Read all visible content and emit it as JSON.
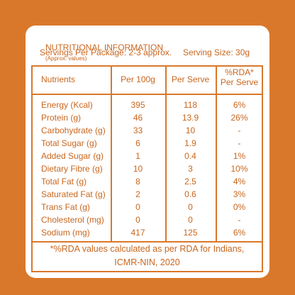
{
  "title": "NUTRITIONAL INFORMATION",
  "title_note": "(Approx. values)",
  "servings": "Servings Per Package: 2-3 approx.",
  "serving_size": "Serving Size: 30g",
  "table": {
    "header": [
      "Nutrients",
      "Per 100g",
      "Per Serve",
      "%RDA*\nPer Serve"
    ],
    "rows": [
      [
        "Energy (Kcal)",
        "395",
        "118",
        "6%"
      ],
      [
        "Protein (g)",
        "46",
        "13.9",
        "26%"
      ],
      [
        "Carbohydrate (g)",
        "33",
        "10",
        "-"
      ],
      [
        "Total Sugar (g)",
        "6",
        "1.9",
        "-"
      ],
      [
        "Added Sugar (g)",
        "1",
        "0.4",
        "1%"
      ],
      [
        "Dietary Fibre (g)",
        "10",
        "3",
        "10%"
      ],
      [
        "Total Fat (g)",
        "8",
        "2.5",
        "4%"
      ],
      [
        "Saturated Fat (g)",
        "2",
        "0.6",
        "3%"
      ],
      [
        "Trans Fat (g)",
        "0",
        "0",
        "0%"
      ],
      [
        "Cholesterol (mg)",
        "0",
        "0",
        "-"
      ],
      [
        "Sodium (mg)",
        "417",
        "125",
        "6%"
      ]
    ]
  },
  "footer": [
    "*%RDA values calculated as per RDA for Indians,",
    "ICMR-NIN, 2020"
  ]
}
